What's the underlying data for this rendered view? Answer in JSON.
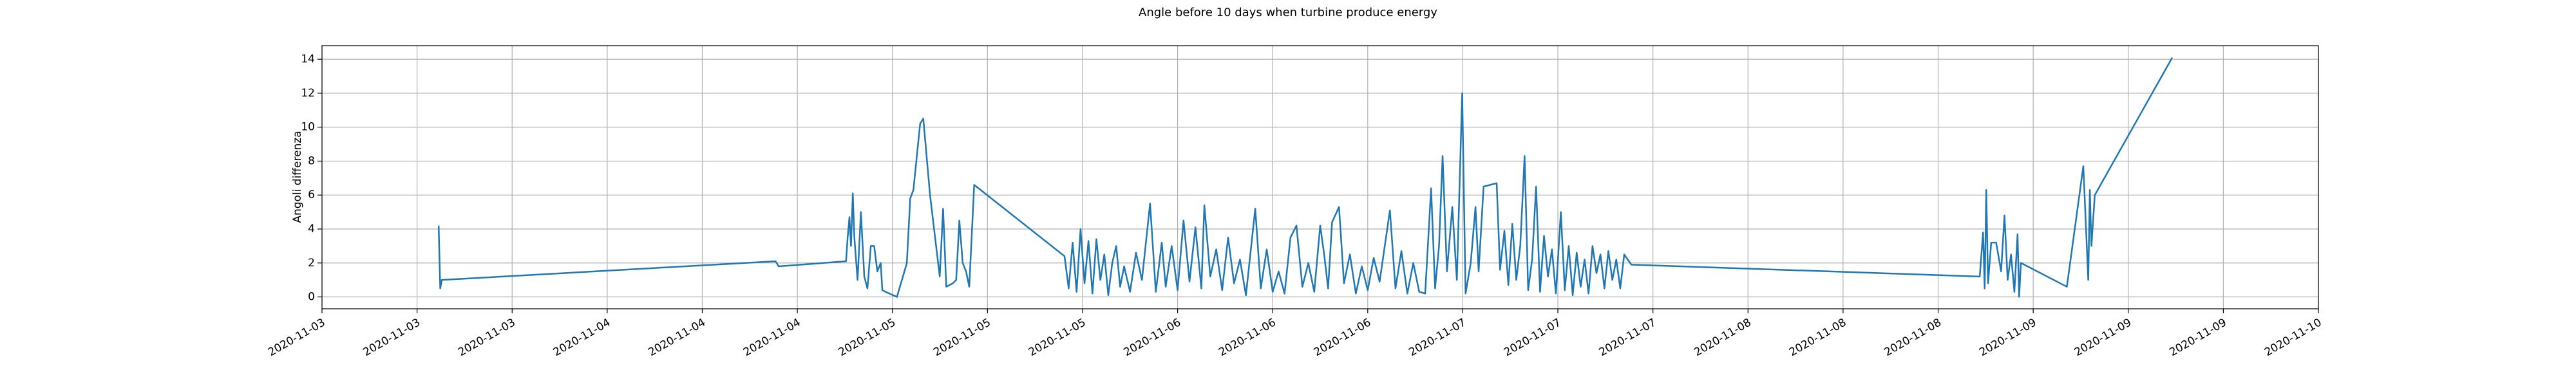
{
  "chart_data": {
    "type": "line",
    "title": "Angle before 10 days when turbine produce energy",
    "y_label": "Angoli differenza",
    "color": "#1f77b4",
    "grid": true,
    "xlim": [
      "2020-11-03T00:00",
      "2020-11-10T00:00"
    ],
    "xticks": [
      {
        "value": "2020-11-03T00:00",
        "label": "2020-11-03"
      },
      {
        "value": "2020-11-03T08:00",
        "label": "2020-11-03"
      },
      {
        "value": "2020-11-03T16:00",
        "label": "2020-11-03"
      },
      {
        "value": "2020-11-04T00:00",
        "label": "2020-11-04"
      },
      {
        "value": "2020-11-04T08:00",
        "label": "2020-11-04"
      },
      {
        "value": "2020-11-04T16:00",
        "label": "2020-11-04"
      },
      {
        "value": "2020-11-05T00:00",
        "label": "2020-11-05"
      },
      {
        "value": "2020-11-05T08:00",
        "label": "2020-11-05"
      },
      {
        "value": "2020-11-05T16:00",
        "label": "2020-11-05"
      },
      {
        "value": "2020-11-06T00:00",
        "label": "2020-11-06"
      },
      {
        "value": "2020-11-06T08:00",
        "label": "2020-11-06"
      },
      {
        "value": "2020-11-06T16:00",
        "label": "2020-11-06"
      },
      {
        "value": "2020-11-07T00:00",
        "label": "2020-11-07"
      },
      {
        "value": "2020-11-07T08:00",
        "label": "2020-11-07"
      },
      {
        "value": "2020-11-07T16:00",
        "label": "2020-11-07"
      },
      {
        "value": "2020-11-08T00:00",
        "label": "2020-11-08"
      },
      {
        "value": "2020-11-08T08:00",
        "label": "2020-11-08"
      },
      {
        "value": "2020-11-08T16:00",
        "label": "2020-11-08"
      },
      {
        "value": "2020-11-09T00:00",
        "label": "2020-11-09"
      },
      {
        "value": "2020-11-09T08:00",
        "label": "2020-11-09"
      },
      {
        "value": "2020-11-09T16:00",
        "label": "2020-11-09"
      },
      {
        "value": "2020-11-10T00:00",
        "label": "2020-11-10"
      }
    ],
    "ylim": [
      -0.7,
      14.8
    ],
    "yticks": [
      0,
      2,
      4,
      6,
      8,
      10,
      12,
      14
    ],
    "x": [
      "2020-11-03T09:49",
      "2020-11-03T09:57",
      "2020-11-03T10:05",
      "2020-11-04T14:10",
      "2020-11-04T14:26",
      "2020-11-04T20:06",
      "2020-11-04T20:14",
      "2020-11-04T20:23",
      "2020-11-04T20:31",
      "2020-11-04T20:40",
      "2020-11-04T20:48",
      "2020-11-04T21:04",
      "2020-11-04T21:21",
      "2020-11-04T21:38",
      "2020-11-04T21:54",
      "2020-11-04T22:11",
      "2020-11-04T22:28",
      "2020-11-04T22:44",
      "2020-11-04T23:01",
      "2020-11-04T23:09",
      "2020-11-04T23:25",
      "2020-11-05T00:23",
      "2020-11-05T01:13",
      "2020-11-05T01:30",
      "2020-11-05T01:46",
      "2020-11-05T02:20",
      "2020-11-05T02:36",
      "2020-11-05T03:10",
      "2020-11-05T03:59",
      "2020-11-05T04:16",
      "2020-11-05T04:32",
      "2020-11-05T05:05",
      "2020-11-05T05:22",
      "2020-11-05T05:38",
      "2020-11-05T05:55",
      "2020-11-05T06:12",
      "2020-11-05T06:28",
      "2020-11-05T06:53",
      "2020-11-05T14:29",
      "2020-11-05T14:50",
      "2020-11-05T15:10",
      "2020-11-05T15:30",
      "2020-11-05T15:50",
      "2020-11-05T16:10",
      "2020-11-05T16:30",
      "2020-11-05T16:50",
      "2020-11-05T17:10",
      "2020-11-05T17:30",
      "2020-11-05T17:50",
      "2020-11-05T18:10",
      "2020-11-05T18:30",
      "2020-11-05T18:50",
      "2020-11-05T19:10",
      "2020-11-05T19:30",
      "2020-11-05T20:00",
      "2020-11-05T20:30",
      "2020-11-05T21:00",
      "2020-11-05T21:41",
      "2020-11-05T22:10",
      "2020-11-05T22:40",
      "2020-11-05T23:00",
      "2020-11-05T23:30",
      "2020-11-06T00:00",
      "2020-11-06T00:30",
      "2020-11-06T01:00",
      "2020-11-06T01:30",
      "2020-11-06T02:00",
      "2020-11-06T02:15",
      "2020-11-06T02:45",
      "2020-11-06T03:15",
      "2020-11-06T03:45",
      "2020-11-06T04:15",
      "2020-11-06T04:45",
      "2020-11-06T05:15",
      "2020-11-06T05:45",
      "2020-11-06T06:32",
      "2020-11-06T07:00",
      "2020-11-06T07:30",
      "2020-11-06T08:00",
      "2020-11-06T08:30",
      "2020-11-06T09:00",
      "2020-11-06T09:30",
      "2020-11-06T10:00",
      "2020-11-06T10:30",
      "2020-11-06T11:00",
      "2020-11-06T11:30",
      "2020-11-06T12:00",
      "2020-11-06T12:20",
      "2020-11-06T12:40",
      "2020-11-06T13:00",
      "2020-11-06T13:35",
      "2020-11-06T14:00",
      "2020-11-06T14:30",
      "2020-11-06T15:00",
      "2020-11-06T15:30",
      "2020-11-06T16:00",
      "2020-11-06T16:30",
      "2020-11-06T17:00",
      "2020-11-06T17:52",
      "2020-11-06T18:20",
      "2020-11-06T18:50",
      "2020-11-06T19:20",
      "2020-11-06T19:50",
      "2020-11-06T20:20",
      "2020-11-06T20:50",
      "2020-11-06T21:20",
      "2020-11-06T21:40",
      "2020-11-06T22:00",
      "2020-11-06T22:18",
      "2020-11-06T22:40",
      "2020-11-06T23:07",
      "2020-11-06T23:30",
      "2020-11-06T23:57",
      "2020-11-07T00:14",
      "2020-11-07T00:40",
      "2020-11-07T01:04",
      "2020-11-07T01:20",
      "2020-11-07T01:45",
      "2020-11-07T02:51",
      "2020-11-07T03:08",
      "2020-11-07T03:30",
      "2020-11-07T03:50",
      "2020-11-07T04:10",
      "2020-11-07T04:30",
      "2020-11-07T04:50",
      "2020-11-07T05:12",
      "2020-11-07T05:30",
      "2020-11-07T05:50",
      "2020-11-07T06:10",
      "2020-11-07T06:30",
      "2020-11-07T06:50",
      "2020-11-07T07:10",
      "2020-11-07T07:30",
      "2020-11-07T07:50",
      "2020-11-07T08:15",
      "2020-11-07T08:35",
      "2020-11-07T08:55",
      "2020-11-07T09:15",
      "2020-11-07T09:35",
      "2020-11-07T09:55",
      "2020-11-07T10:15",
      "2020-11-07T10:35",
      "2020-11-07T10:55",
      "2020-11-07T11:15",
      "2020-11-07T11:35",
      "2020-11-07T11:55",
      "2020-11-07T12:15",
      "2020-11-07T12:35",
      "2020-11-07T12:55",
      "2020-11-07T13:15",
      "2020-11-07T13:35",
      "2020-11-07T14:11",
      "2020-11-08T19:30",
      "2020-11-08T19:47",
      "2020-11-08T19:55",
      "2020-11-08T20:03",
      "2020-11-08T20:12",
      "2020-11-08T20:28",
      "2020-11-08T20:53",
      "2020-11-08T21:18",
      "2020-11-08T21:35",
      "2020-11-08T21:51",
      "2020-11-08T22:08",
      "2020-11-08T22:25",
      "2020-11-08T22:41",
      "2020-11-08T22:49",
      "2020-11-08T22:58",
      "2020-11-09T02:50",
      "2020-11-09T04:13",
      "2020-11-09T04:38",
      "2020-11-09T04:46",
      "2020-11-09T04:54",
      "2020-11-09T05:11",
      "2020-11-09T11:42"
    ],
    "values": [
      4.2,
      0.5,
      1.0,
      2.1,
      1.8,
      2.1,
      3.5,
      4.7,
      3.0,
      6.1,
      3.5,
      1.0,
      5.0,
      1.2,
      0.5,
      3.0,
      3.0,
      1.5,
      2.0,
      0.4,
      0.3,
      0.0,
      2.0,
      5.8,
      6.3,
      10.2,
      10.5,
      6.0,
      1.2,
      5.2,
      0.6,
      0.8,
      1.0,
      4.5,
      2.0,
      1.5,
      0.6,
      6.6,
      2.4,
      0.5,
      3.2,
      0.3,
      4.0,
      0.8,
      3.3,
      0.2,
      3.4,
      1.0,
      2.5,
      0.1,
      2.0,
      3.0,
      0.6,
      1.8,
      0.3,
      2.6,
      1.0,
      5.5,
      0.3,
      3.2,
      0.6,
      3.0,
      0.4,
      4.5,
      0.9,
      4.1,
      0.5,
      5.4,
      1.2,
      2.8,
      0.4,
      3.5,
      0.8,
      2.2,
      0.1,
      5.2,
      0.5,
      2.8,
      0.3,
      1.5,
      0.2,
      3.5,
      4.2,
      0.6,
      2.0,
      0.3,
      4.2,
      2.5,
      0.5,
      4.4,
      5.3,
      0.8,
      2.5,
      0.2,
      1.8,
      0.4,
      2.3,
      0.9,
      5.1,
      0.5,
      2.7,
      0.2,
      2.0,
      0.3,
      0.2,
      6.4,
      0.5,
      3.0,
      8.3,
      1.5,
      5.3,
      1.0,
      12.0,
      0.2,
      2.0,
      5.3,
      1.5,
      6.5,
      6.7,
      1.6,
      3.9,
      0.7,
      4.3,
      1.0,
      3.0,
      8.3,
      0.4,
      2.2,
      6.5,
      0.3,
      3.6,
      1.2,
      2.8,
      0.2,
      5.0,
      0.4,
      3.0,
      0.1,
      2.6,
      0.6,
      2.2,
      0.2,
      3.0,
      1.4,
      2.5,
      0.5,
      2.7,
      1.0,
      2.2,
      0.5,
      2.5,
      1.9,
      1.2,
      3.8,
      0.5,
      6.3,
      0.8,
      3.2,
      3.2,
      1.5,
      4.8,
      1.0,
      2.5,
      0.3,
      3.7,
      0.0,
      2.0,
      0.6,
      7.7,
      1.0,
      6.3,
      3.0,
      6.0,
      14.1
    ]
  }
}
